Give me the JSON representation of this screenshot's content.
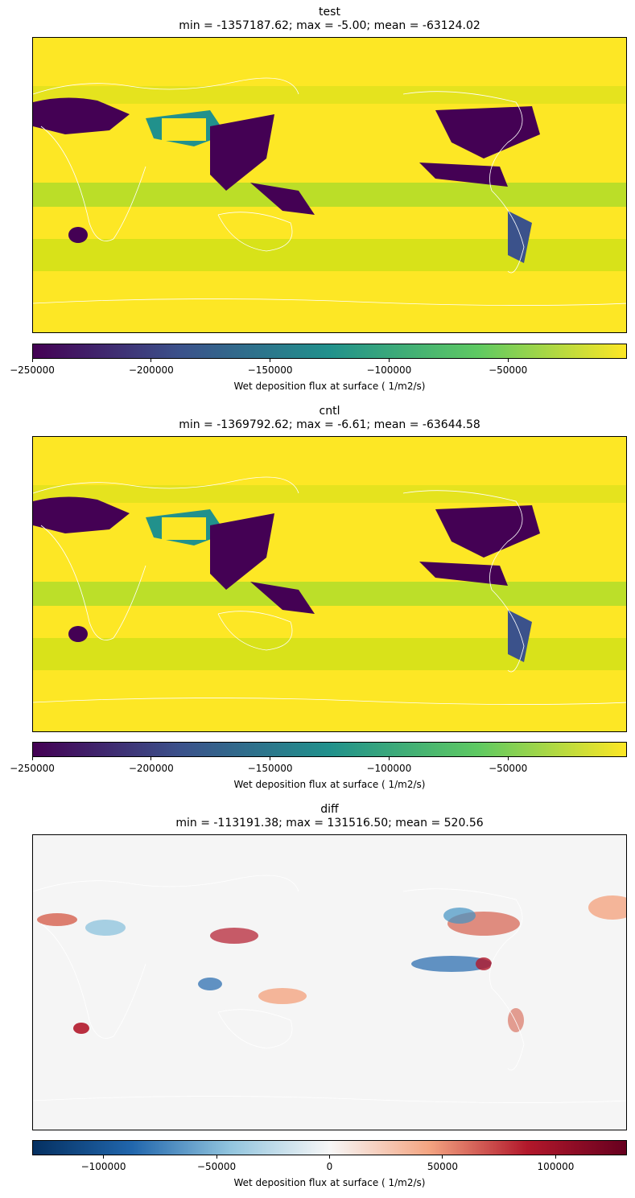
{
  "panels": [
    {
      "title": "test",
      "stats": "min = -1357187.62; max = -5.00; mean = -63124.02",
      "colorbar": {
        "label": "Wet deposition flux at surface ( 1/m2/s)",
        "colormap": "viridis",
        "range": [
          -250000,
          0
        ],
        "ticks": [
          -250000,
          -200000,
          -150000,
          -100000,
          -50000
        ],
        "tick_labels": [
          "−250000",
          "−200000",
          "−150000",
          "−100000",
          "−50000"
        ]
      }
    },
    {
      "title": "cntl",
      "stats": "min = -1369792.62; max = -6.61; mean = -63644.58",
      "colorbar": {
        "label": "Wet deposition flux at surface ( 1/m2/s)",
        "colormap": "viridis",
        "range": [
          -250000,
          0
        ],
        "ticks": [
          -250000,
          -200000,
          -150000,
          -100000,
          -50000
        ],
        "tick_labels": [
          "−250000",
          "−200000",
          "−150000",
          "−100000",
          "−50000"
        ]
      }
    },
    {
      "title": "diff",
      "stats": "min = -113191.38; max = 131516.50; mean = 520.56",
      "colorbar": {
        "label": "Wet deposition flux at surface ( 1/m2/s)",
        "colormap": "RdBu_r",
        "range": [
          -131516.5,
          131516.5
        ],
        "ticks": [
          -100000,
          -50000,
          0,
          50000,
          100000
        ],
        "tick_labels": [
          "−100000",
          "−50000",
          "0",
          "50000",
          "100000"
        ]
      }
    }
  ],
  "colors": {
    "viridis": [
      "#440154",
      "#3b528b",
      "#21918c",
      "#5ec962",
      "#fde725"
    ],
    "rdbu_r": [
      "#053061",
      "#2166ac",
      "#92c5de",
      "#f7f7f7",
      "#f4a582",
      "#b2182b",
      "#67001f"
    ],
    "coastline": "#ffffff"
  }
}
